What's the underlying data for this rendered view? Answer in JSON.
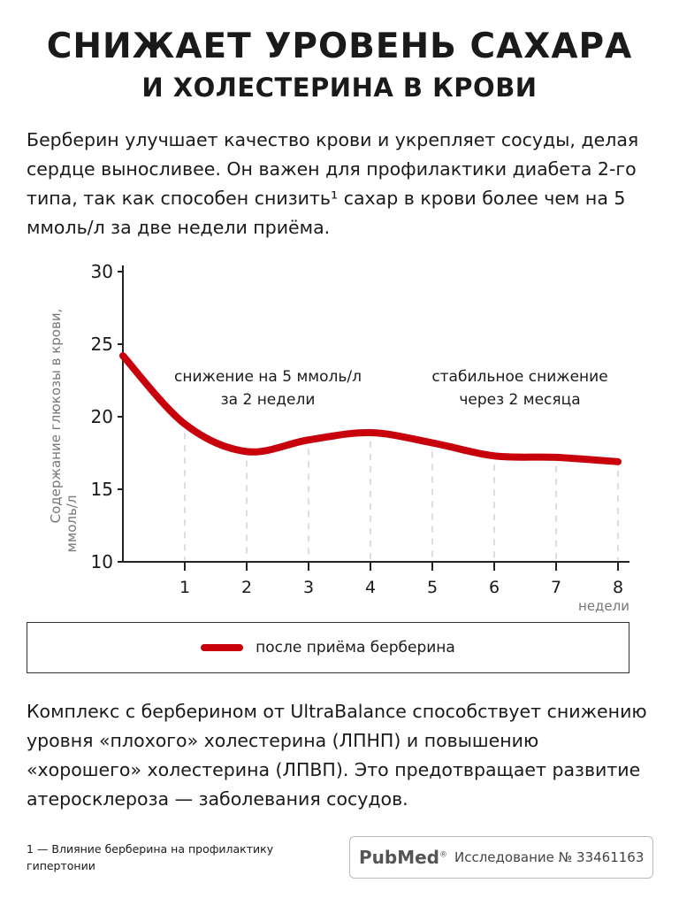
{
  "header": {
    "title_line1": "СНИЖАЕТ УРОВЕНЬ САХАРА",
    "title_line2": "И ХОЛЕСТЕРИНА В КРОВИ"
  },
  "intro": "Берберин улучшает качество крови и укрепляет сосуды, делая сердце выносливее. Он важен для профилактики диабета 2-го типа, так как способен снизить¹ сахар в крови более чем на 5 ммоль/л за две недели приёма.",
  "chart_data": {
    "type": "line",
    "x": [
      0,
      1,
      2,
      3,
      4,
      5,
      6,
      7,
      8
    ],
    "series": [
      {
        "name": "после приёма берберина",
        "values": [
          24.2,
          19.5,
          17.6,
          18.4,
          18.9,
          18.2,
          17.3,
          17.2,
          16.9
        ],
        "color": "#c8000c"
      }
    ],
    "xticks": [
      "1",
      "2",
      "3",
      "4",
      "5",
      "6",
      "7",
      "8"
    ],
    "yticks": [
      "10",
      "15",
      "20",
      "25",
      "30"
    ],
    "xlabel": "недели",
    "ylabel_line1": "Содержание глюкозы в крови,",
    "ylabel_line2": "ммоль/л",
    "xlim": [
      0,
      8
    ],
    "ylim": [
      10,
      30
    ],
    "annotations": [
      {
        "line1": "снижение на 5 ммоль/л",
        "line2": "за 2 недели"
      },
      {
        "line1": "стабильное снижение",
        "line2": "через 2 месяца"
      }
    ],
    "legend_position": "bottom",
    "grid": "dashed vertical"
  },
  "outro": "Комплекс с берберином от UltraBalance способствует снижению уровня «плохого» холестерина (ЛПНП) и повышению «хорошего» холестерина (ЛПВП). Это предотвращает развитие атеросклероза — заболевания сосудов.",
  "footnote": "1 — Влияние берберина на профилактику гипертонии",
  "source": {
    "logo": "PubMed",
    "text": "Исследование № 33461163"
  }
}
